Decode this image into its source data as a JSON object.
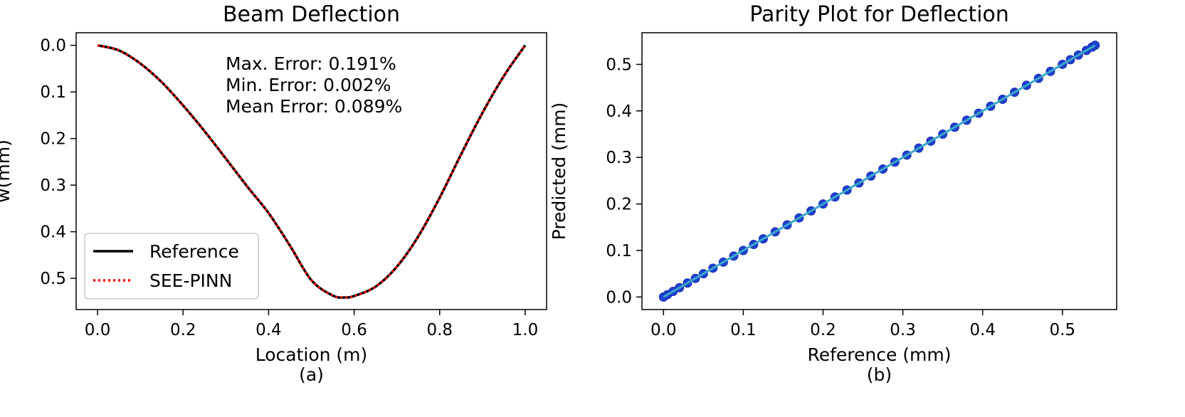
{
  "chart_data": [
    {
      "type": "line",
      "title": "Beam Deflection",
      "xlabel": "Location (m)",
      "ylabel": "w(mm)",
      "caption": "(a)",
      "xlim": [
        -0.05,
        1.05
      ],
      "ylim": [
        0.567,
        -0.027
      ],
      "y_inverted": true,
      "xticks": [
        0.0,
        0.2,
        0.4,
        0.6,
        0.8,
        1.0
      ],
      "xtick_labels": [
        "0.0",
        "0.2",
        "0.4",
        "0.6",
        "0.8",
        "1.0"
      ],
      "yticks": [
        0.0,
        0.1,
        0.2,
        0.3,
        0.4,
        0.5
      ],
      "ytick_labels": [
        "0.0",
        "0.1",
        "0.2",
        "0.3",
        "0.4",
        "0.5"
      ],
      "grid": false,
      "legend_position": "lower-left",
      "annotations": [
        "Max. Error: 0.191%",
        "Min. Error: 0.002%",
        "Mean Error: 0.089%"
      ],
      "series": [
        {
          "name": "Reference",
          "color": "#000000",
          "style": "solid",
          "x": [
            0.0,
            0.05,
            0.1,
            0.15,
            0.2,
            0.25,
            0.3,
            0.35,
            0.4,
            0.45,
            0.5,
            0.55,
            0.578,
            0.6,
            0.65,
            0.7,
            0.75,
            0.8,
            0.85,
            0.9,
            0.95,
            1.0
          ],
          "values": [
            0.0,
            0.011,
            0.039,
            0.079,
            0.129,
            0.184,
            0.243,
            0.303,
            0.36,
            0.43,
            0.504,
            0.537,
            0.541,
            0.538,
            0.518,
            0.475,
            0.41,
            0.327,
            0.234,
            0.145,
            0.066,
            0.0
          ]
        },
        {
          "name": "SEE-PINN",
          "color": "#ff0000",
          "style": "dotted",
          "x": [
            0.0,
            0.05,
            0.1,
            0.15,
            0.2,
            0.25,
            0.3,
            0.35,
            0.4,
            0.45,
            0.5,
            0.55,
            0.578,
            0.6,
            0.65,
            0.7,
            0.75,
            0.8,
            0.85,
            0.9,
            0.95,
            1.0
          ],
          "values": [
            0.0,
            0.011,
            0.039,
            0.079,
            0.129,
            0.184,
            0.243,
            0.303,
            0.36,
            0.43,
            0.504,
            0.537,
            0.541,
            0.538,
            0.518,
            0.475,
            0.41,
            0.327,
            0.234,
            0.145,
            0.066,
            0.0
          ]
        }
      ]
    },
    {
      "type": "scatter",
      "title": "Parity Plot for Deflection",
      "xlabel": "Reference (mm)",
      "ylabel": "Predicted (mm)",
      "caption": "(b)",
      "xlim": [
        -0.027,
        0.568
      ],
      "ylim": [
        -0.027,
        0.568
      ],
      "xticks": [
        0.0,
        0.1,
        0.2,
        0.3,
        0.4,
        0.5
      ],
      "xtick_labels": [
        "0.0",
        "0.1",
        "0.2",
        "0.3",
        "0.4",
        "0.5"
      ],
      "yticks": [
        0.0,
        0.1,
        0.2,
        0.3,
        0.4,
        0.5
      ],
      "ytick_labels": [
        "0.0",
        "0.1",
        "0.2",
        "0.3",
        "0.4",
        "0.5"
      ],
      "grid": false,
      "marker_color": "#1f3fd0",
      "line_color": "#3aa8c8",
      "points": {
        "x": [
          0.0,
          0.005,
          0.012,
          0.02,
          0.03,
          0.04,
          0.05,
          0.062,
          0.075,
          0.088,
          0.1,
          0.113,
          0.125,
          0.14,
          0.155,
          0.17,
          0.185,
          0.2,
          0.215,
          0.23,
          0.245,
          0.26,
          0.275,
          0.29,
          0.305,
          0.32,
          0.335,
          0.35,
          0.365,
          0.38,
          0.395,
          0.41,
          0.425,
          0.44,
          0.455,
          0.47,
          0.485,
          0.5,
          0.51,
          0.52,
          0.53,
          0.537,
          0.541
        ],
        "y": [
          0.0,
          0.005,
          0.012,
          0.02,
          0.03,
          0.04,
          0.05,
          0.062,
          0.075,
          0.088,
          0.1,
          0.113,
          0.125,
          0.14,
          0.155,
          0.17,
          0.185,
          0.2,
          0.215,
          0.23,
          0.245,
          0.26,
          0.275,
          0.29,
          0.305,
          0.32,
          0.335,
          0.35,
          0.365,
          0.38,
          0.395,
          0.41,
          0.425,
          0.44,
          0.455,
          0.47,
          0.485,
          0.5,
          0.51,
          0.52,
          0.53,
          0.537,
          0.541
        ]
      },
      "fit_line": {
        "x": [
          0.0,
          0.541
        ],
        "y": [
          0.0,
          0.541
        ]
      }
    }
  ]
}
